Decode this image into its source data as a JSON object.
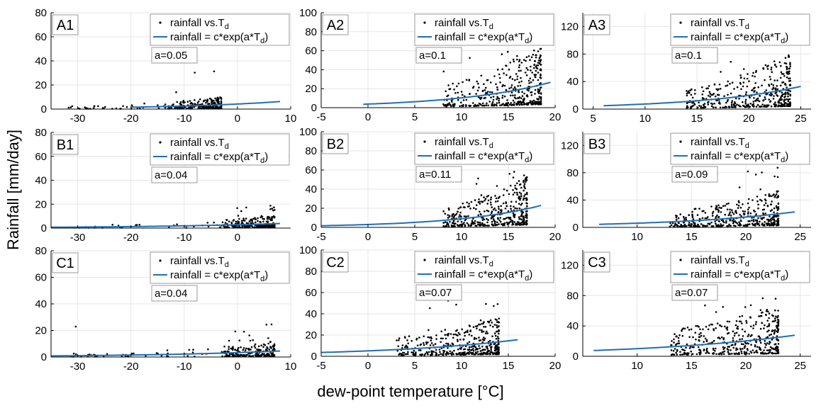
{
  "figure": {
    "xlabel": "dew-point temperature [°C]",
    "ylabel": "Rainfall [mm/day]",
    "legend_scatter": "rainfall vs.T",
    "legend_fit": "rainfall = c*exp(a*T",
    "legend_sub": "d",
    "legend_close": ")"
  },
  "chart_data": [
    {
      "id": "A1",
      "type": "scatter",
      "panel_label": "A1",
      "a_label": "a=0.05",
      "a": 0.05,
      "c": 4.2,
      "fit_range": [
        -20,
        8
      ],
      "xlim": [
        -35,
        10
      ],
      "ylim": [
        0,
        80
      ],
      "xticks": [
        -30,
        -20,
        -10,
        0,
        10
      ],
      "yticks": [
        0,
        20,
        40,
        60,
        80
      ],
      "scatter_x": [
        -20,
        -3
      ],
      "scatter_y": [
        1,
        32
      ],
      "grid": true,
      "legend_position": "top-right"
    },
    {
      "id": "A2",
      "type": "scatter",
      "panel_label": "A2",
      "a_label": "a=0.1",
      "a": 0.1,
      "c": 3.8,
      "fit_range": [
        -0.5,
        19.5
      ],
      "xlim": [
        -5,
        20
      ],
      "ylim": [
        0,
        100
      ],
      "xticks": [
        -5,
        0,
        5,
        10,
        15,
        20
      ],
      "yticks": [
        0,
        20,
        40,
        60,
        80,
        100
      ],
      "scatter_x": [
        8,
        18.5
      ],
      "scatter_y": [
        2,
        62
      ],
      "grid": true,
      "legend_position": "top-right"
    },
    {
      "id": "A3",
      "type": "scatter",
      "panel_label": "A3",
      "a_label": "a=0.1",
      "a": 0.1,
      "c": 2.7,
      "fit_range": [
        6,
        25
      ],
      "xlim": [
        4,
        26
      ],
      "ylim": [
        0,
        140
      ],
      "xticks": [
        5,
        10,
        15,
        20,
        25
      ],
      "yticks": [
        0,
        40,
        80,
        120
      ],
      "scatter_x": [
        14,
        24
      ],
      "scatter_y": [
        2,
        92
      ],
      "grid": true,
      "legend_position": "top-right"
    },
    {
      "id": "B1",
      "type": "scatter",
      "panel_label": "B1",
      "a_label": "a=0.04",
      "a": 0.04,
      "c": 2.8,
      "fit_range": [
        -35,
        8
      ],
      "xlim": [
        -35,
        10
      ],
      "ylim": [
        0,
        80
      ],
      "xticks": [
        -30,
        -20,
        -10,
        0
      ],
      "yticks": [
        0,
        20,
        40,
        60,
        80
      ],
      "scatter_x": [
        -30,
        7
      ],
      "scatter_y": [
        0.5,
        22
      ],
      "grid": true,
      "legend_position": "top-right"
    },
    {
      "id": "B2",
      "type": "scatter",
      "panel_label": "B2",
      "a_label": "a=0.11",
      "a": 0.11,
      "c": 3.0,
      "fit_range": [
        -5,
        18.5
      ],
      "xlim": [
        -5,
        20
      ],
      "ylim": [
        0,
        100
      ],
      "xticks": [
        -5,
        0,
        5,
        10,
        15,
        20
      ],
      "yticks": [
        0,
        20,
        40,
        60,
        80,
        100
      ],
      "scatter_x": [
        8,
        17
      ],
      "scatter_y": [
        2,
        63
      ],
      "grid": true,
      "legend_position": "top-right"
    },
    {
      "id": "B3",
      "type": "scatter",
      "panel_label": "B3",
      "a_label": "a=0.09",
      "a": 0.09,
      "c": 2.5,
      "fit_range": [
        6.5,
        24.5
      ],
      "xlim": [
        5,
        26
      ],
      "ylim": [
        0,
        140
      ],
      "xticks": [
        10,
        15,
        20,
        25
      ],
      "yticks": [
        0,
        40,
        80,
        120
      ],
      "scatter_x": [
        13,
        23
      ],
      "scatter_y": [
        2,
        88
      ],
      "grid": true,
      "legend_position": "top-right"
    },
    {
      "id": "C1",
      "type": "scatter",
      "panel_label": "C1",
      "a_label": "a=0.04",
      "a": 0.04,
      "c": 3.3,
      "fit_range": [
        -35,
        8
      ],
      "xlim": [
        -35,
        10
      ],
      "ylim": [
        0,
        80
      ],
      "xticks": [
        -30,
        -20,
        -10,
        0,
        10
      ],
      "yticks": [
        0,
        20,
        40,
        60,
        80
      ],
      "scatter_x": [
        -30,
        7
      ],
      "scatter_y": [
        0.5,
        26
      ],
      "grid": true,
      "legend_position": "top-right"
    },
    {
      "id": "C2",
      "type": "scatter",
      "panel_label": "C2",
      "a_label": "a=0.07",
      "a": 0.07,
      "c": 5.1,
      "fit_range": [
        -5,
        16
      ],
      "xlim": [
        -5,
        20
      ],
      "ylim": [
        0,
        100
      ],
      "xticks": [
        -5,
        0,
        5,
        10,
        15,
        20
      ],
      "yticks": [
        0,
        20,
        40,
        60,
        80,
        100
      ],
      "scatter_x": [
        3,
        14
      ],
      "scatter_y": [
        1,
        55
      ],
      "grid": true,
      "legend_position": "top-right"
    },
    {
      "id": "C3",
      "type": "scatter",
      "panel_label": "C3",
      "a_label": "a=0.07",
      "a": 0.07,
      "c": 5.0,
      "fit_range": [
        6,
        24.5
      ],
      "xlim": [
        5,
        26
      ],
      "ylim": [
        0,
        140
      ],
      "xticks": [
        10,
        15,
        20,
        25
      ],
      "yticks": [
        0,
        40,
        80,
        120
      ],
      "scatter_x": [
        13,
        23
      ],
      "scatter_y": [
        2,
        82
      ],
      "grid": true,
      "legend_position": "top-right"
    }
  ],
  "colors": {
    "fit_line": "#1f6fb4",
    "points": "#000000",
    "grid": "#e6e6e6",
    "axis": "#000000"
  }
}
